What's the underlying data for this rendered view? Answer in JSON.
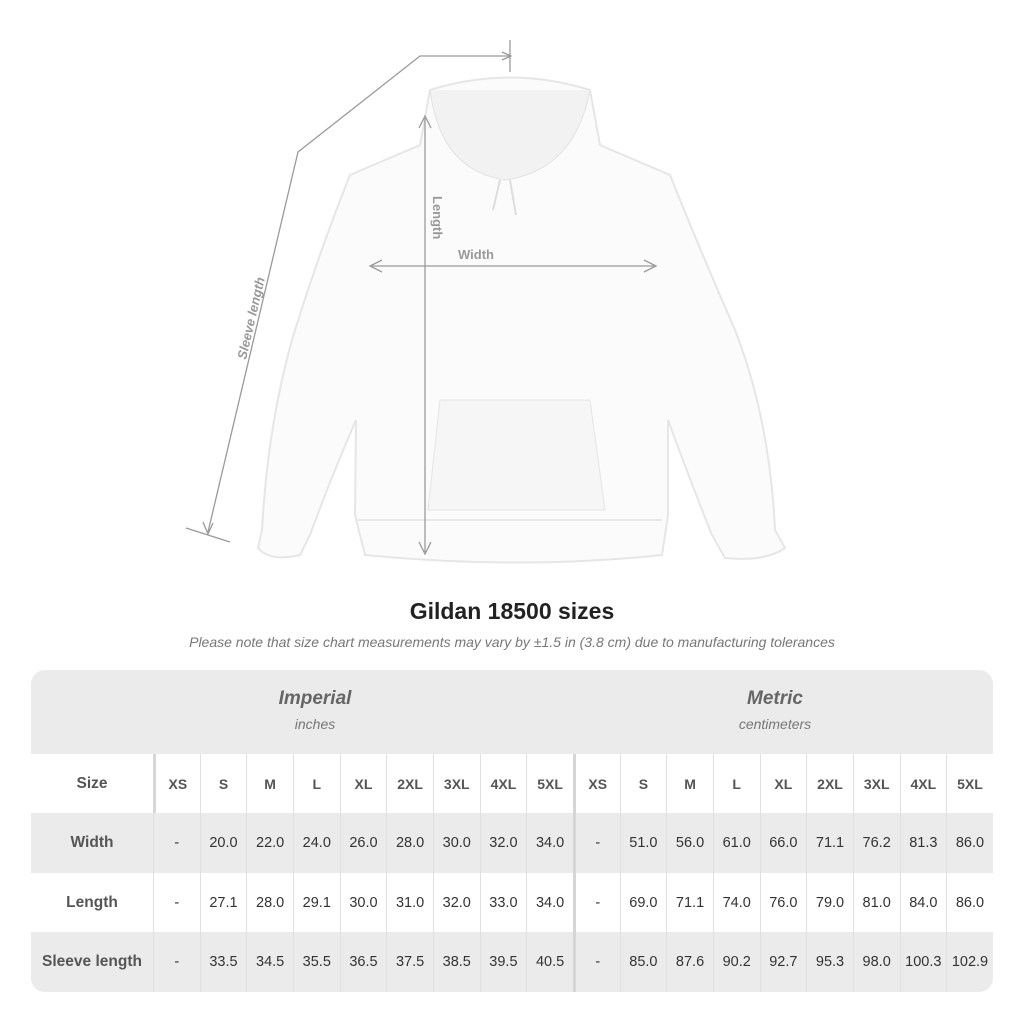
{
  "diagram": {
    "labels": {
      "sleeve": "Sleeve length",
      "length": "Length",
      "width": "Width"
    }
  },
  "header": {
    "title": "Gildan 18500 sizes",
    "note": "Please note that size chart measurements may vary by ±1.5 in (3.8 cm) due to manufacturing tolerances"
  },
  "table": {
    "systems": [
      {
        "name": "Imperial",
        "unit": "inches"
      },
      {
        "name": "Metric",
        "unit": "centimeters"
      }
    ],
    "size_label": "Size",
    "sizes": [
      "XS",
      "S",
      "M",
      "L",
      "XL",
      "2XL",
      "3XL",
      "4XL",
      "5XL"
    ],
    "rows": [
      {
        "label": "Width",
        "imperial": [
          "-",
          "20.0",
          "22.0",
          "24.0",
          "26.0",
          "28.0",
          "30.0",
          "32.0",
          "34.0"
        ],
        "metric": [
          "-",
          "51.0",
          "56.0",
          "61.0",
          "66.0",
          "71.1",
          "76.2",
          "81.3",
          "86.0"
        ]
      },
      {
        "label": "Length",
        "imperial": [
          "-",
          "27.1",
          "28.0",
          "29.1",
          "30.0",
          "31.0",
          "32.0",
          "33.0",
          "34.0"
        ],
        "metric": [
          "-",
          "69.0",
          "71.1",
          "74.0",
          "76.0",
          "79.0",
          "81.0",
          "84.0",
          "86.0"
        ]
      },
      {
        "label": "Sleeve length",
        "imperial": [
          "-",
          "33.5",
          "34.5",
          "35.5",
          "36.5",
          "37.5",
          "38.5",
          "39.5",
          "40.5"
        ],
        "metric": [
          "-",
          "85.0",
          "87.6",
          "90.2",
          "92.7",
          "95.3",
          "98.0",
          "100.3",
          "102.9"
        ]
      }
    ]
  }
}
